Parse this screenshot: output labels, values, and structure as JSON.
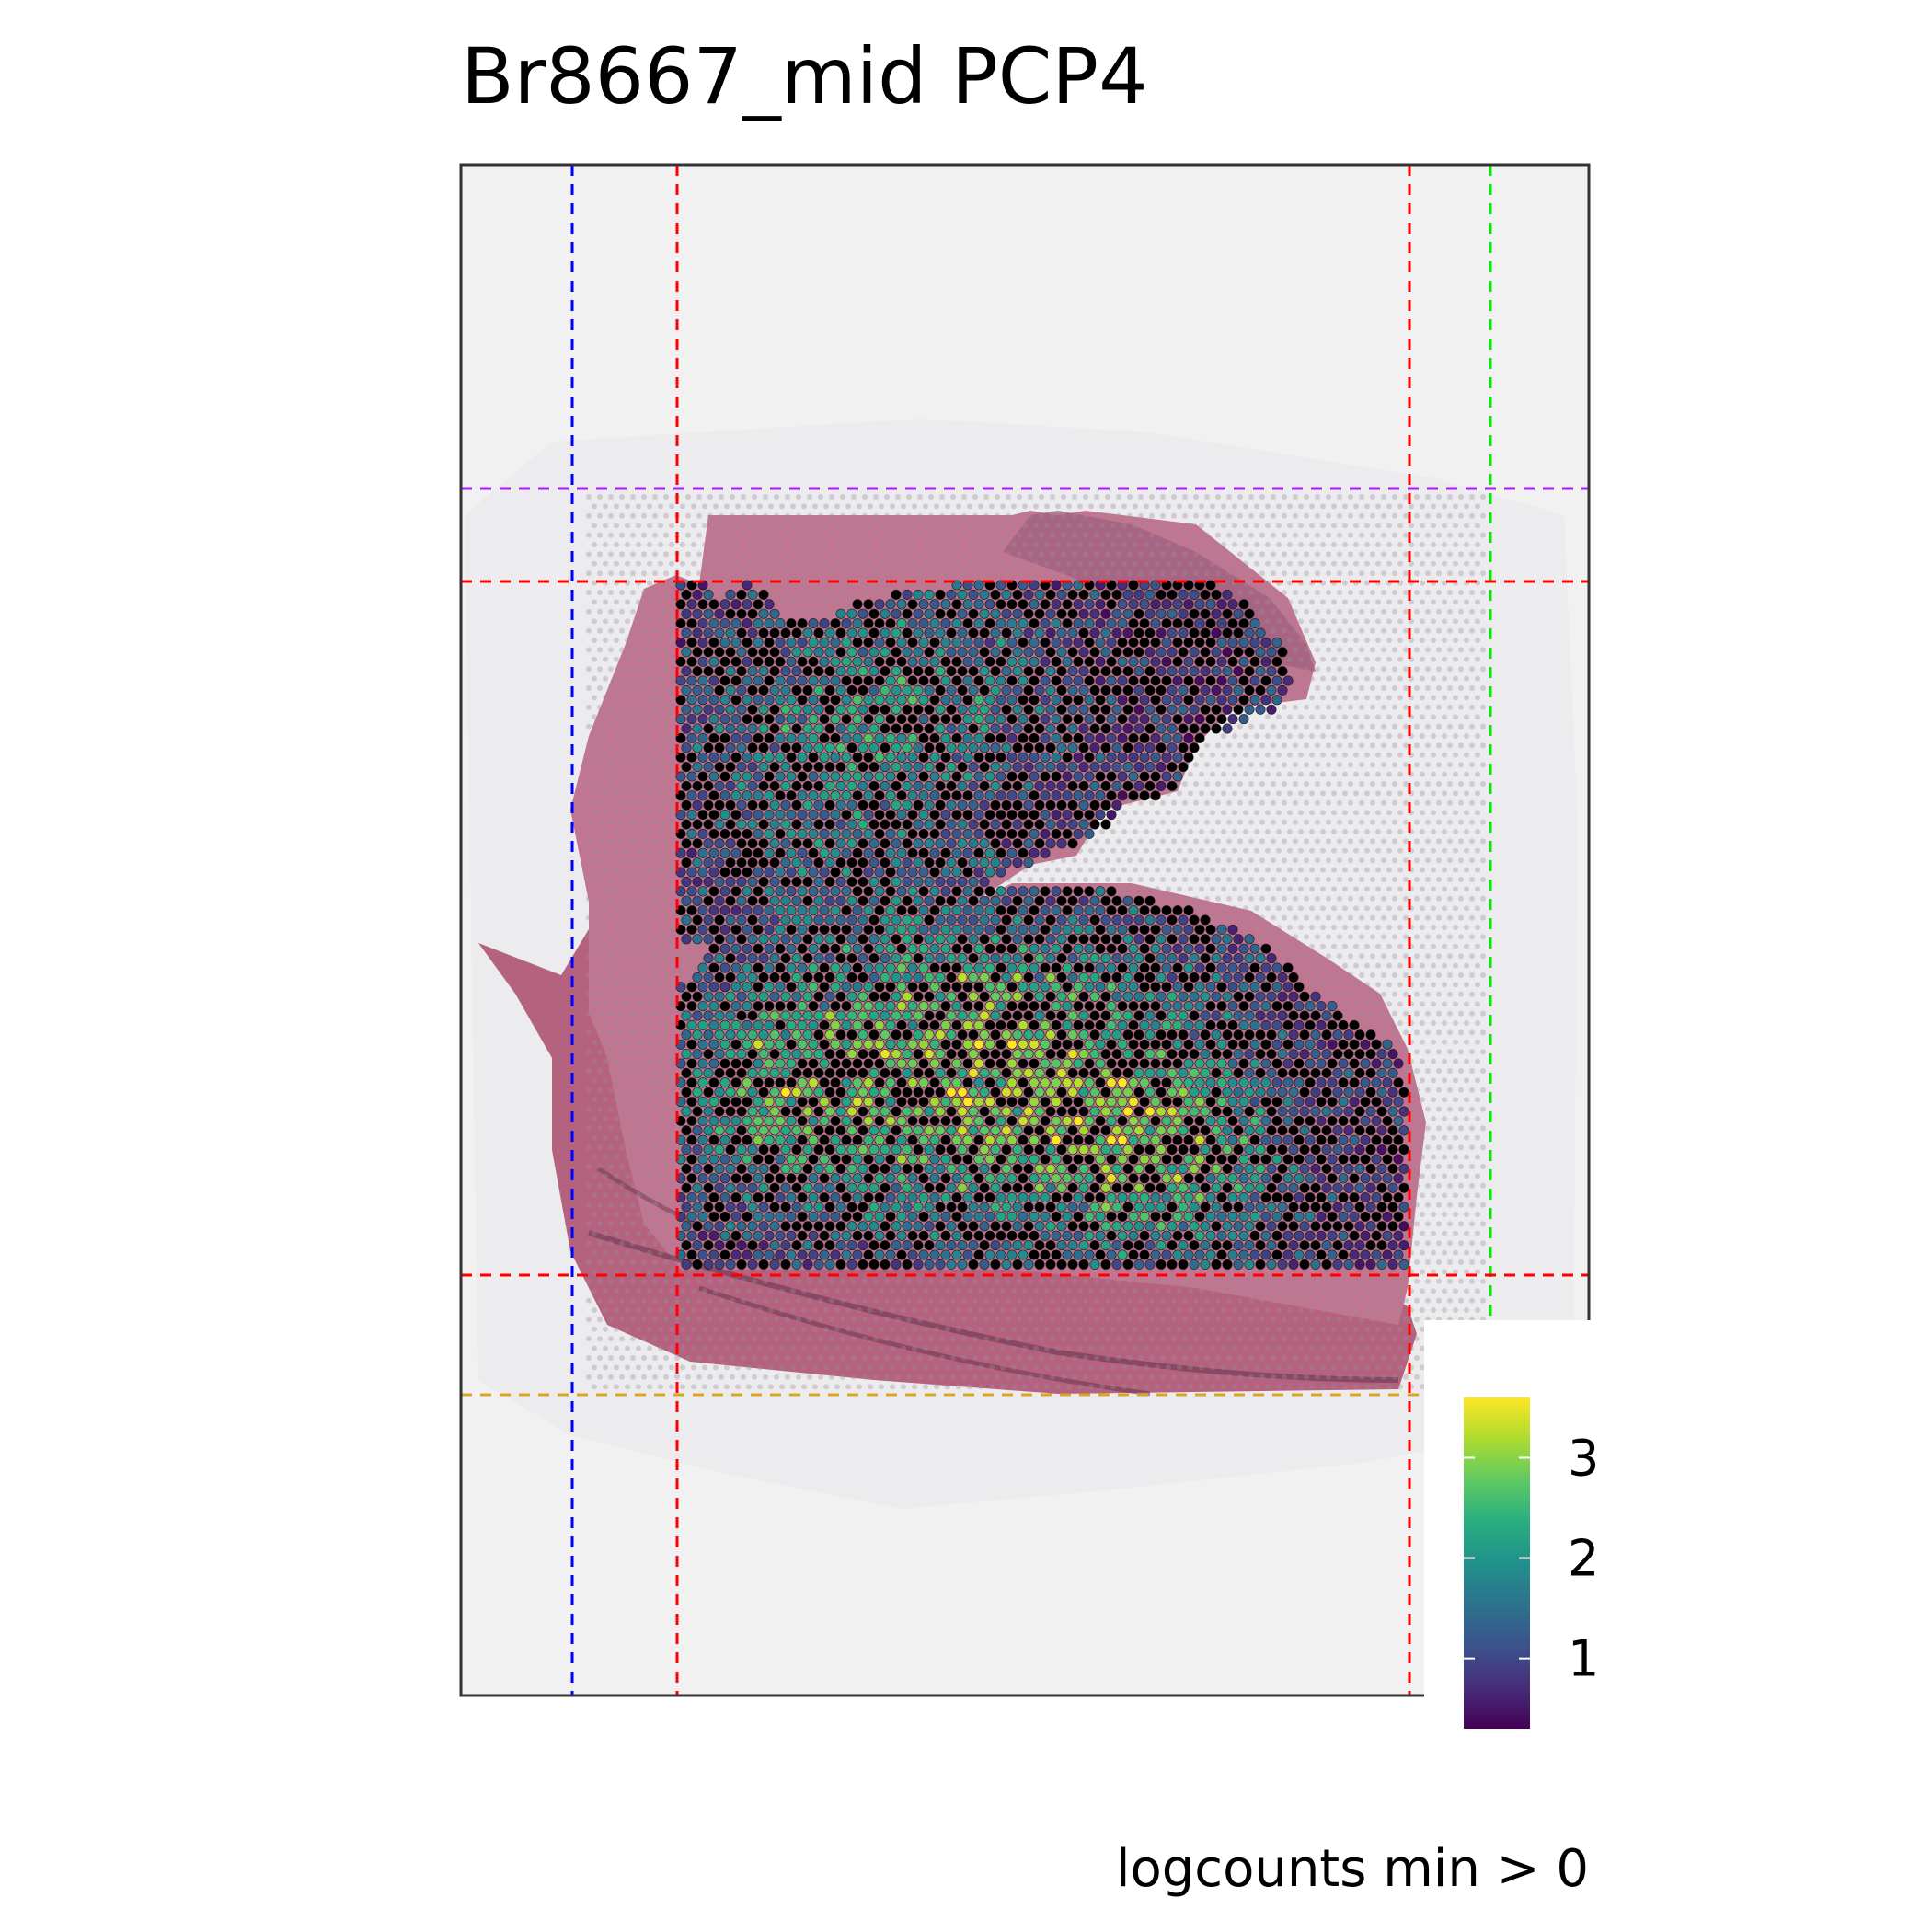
{
  "chart_data": {
    "type": "heatmap",
    "title": "Br8667_mid PCP4",
    "caption": "logcounts min > 0",
    "colorbar": {
      "colormap": "viridis",
      "range": [
        0.3,
        3.6
      ],
      "ticks": [
        1,
        2,
        3
      ],
      "tick_labels": [
        "1",
        "2",
        "3"
      ]
    },
    "guide_lines": [
      {
        "orientation": "vertical",
        "color": "#0000ff"
      },
      {
        "orientation": "vertical",
        "color": "#ff0000"
      },
      {
        "orientation": "vertical",
        "color": "#ff0000"
      },
      {
        "orientation": "vertical",
        "color": "#00ee00"
      },
      {
        "orientation": "horizontal",
        "color": "#a020f0"
      },
      {
        "orientation": "horizontal",
        "color": "#ff0000"
      },
      {
        "orientation": "horizontal",
        "color": "#ff0000"
      },
      {
        "orientation": "horizontal",
        "color": "#daa520"
      }
    ],
    "colors": {
      "background": "#f1f1f1",
      "tissue": "#b5627f",
      "zero_spot": "#000000"
    },
    "grid": false
  }
}
